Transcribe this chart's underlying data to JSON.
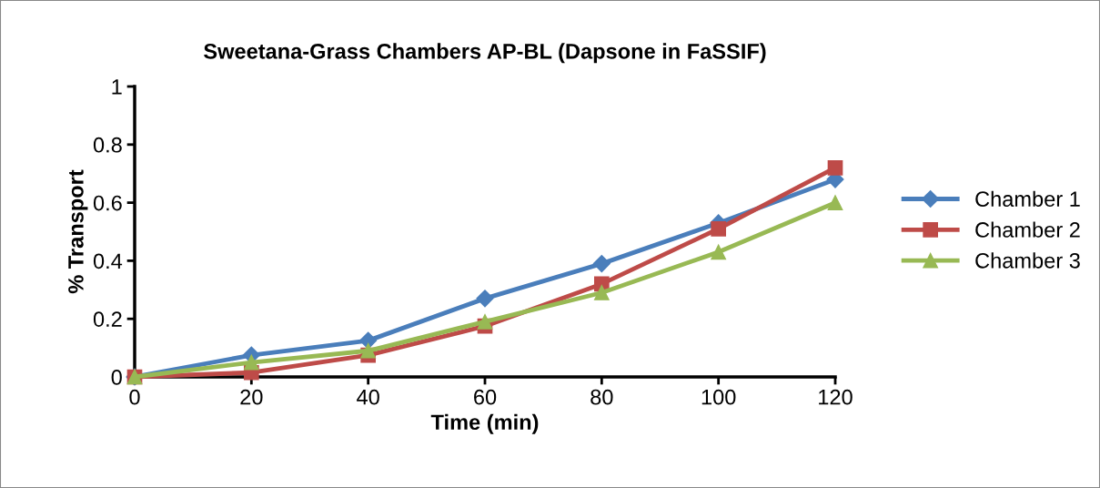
{
  "chart_data": {
    "type": "line",
    "title": "Sweetana-Grass Chambers AP-BL (Dapsone in FaSSIF)",
    "xlabel": "Time (min)",
    "ylabel": "% Transport",
    "x": [
      0,
      20,
      40,
      60,
      80,
      100,
      120
    ],
    "series": [
      {
        "name": "Chamber 1",
        "color": "#4a7ebb",
        "marker": "diamond",
        "values": [
          0,
          0.075,
          0.125,
          0.27,
          0.39,
          0.53,
          0.68
        ]
      },
      {
        "name": "Chamber 2",
        "color": "#be4b48",
        "marker": "square",
        "values": [
          0,
          0.015,
          0.075,
          0.175,
          0.32,
          0.51,
          0.72
        ]
      },
      {
        "name": "Chamber 3",
        "color": "#98b954",
        "marker": "triangle",
        "values": [
          0,
          0.05,
          0.09,
          0.19,
          0.29,
          0.43,
          0.6
        ]
      }
    ],
    "xlim": [
      0,
      120
    ],
    "xticks": [
      0,
      20,
      40,
      60,
      80,
      100,
      120
    ],
    "ylim": [
      0,
      1
    ],
    "yticks": [
      0,
      0.2,
      0.4,
      0.6,
      0.8,
      1
    ],
    "grid": false,
    "legend": "right",
    "line_style": "solid"
  }
}
